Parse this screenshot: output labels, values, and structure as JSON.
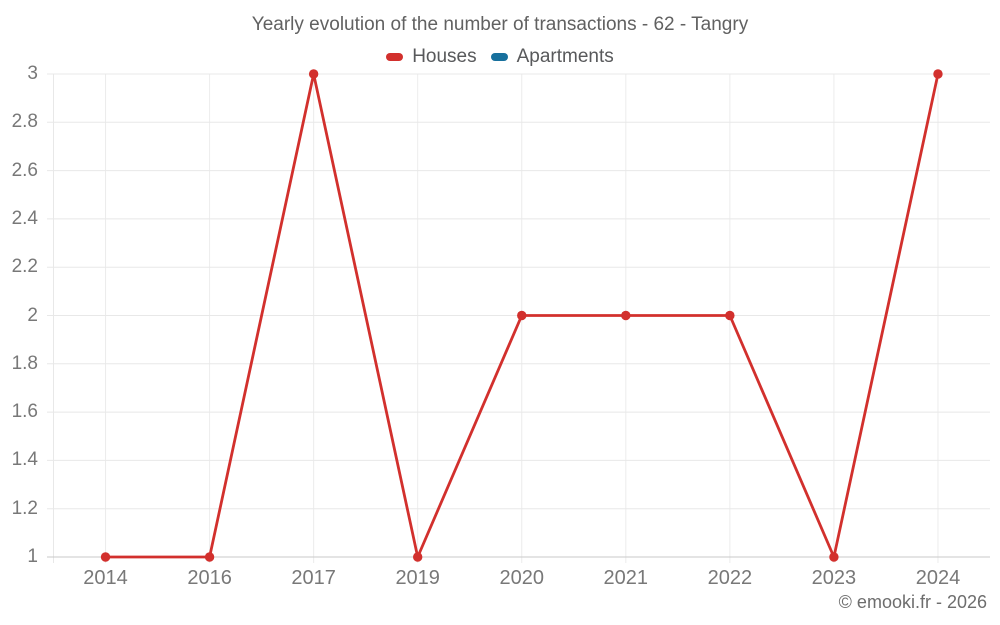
{
  "page": {
    "footer": "© emooki.fr - 2026"
  },
  "chart_data": {
    "type": "line",
    "title": "Yearly evolution of the number of transactions - 62 - Tangry",
    "categories": [
      "2014",
      "2016",
      "2017",
      "2019",
      "2020",
      "2021",
      "2022",
      "2023",
      "2024"
    ],
    "series": [
      {
        "name": "Houses",
        "color": "#d2302d",
        "values": [
          1,
          1,
          3,
          1,
          2,
          2,
          2,
          1,
          3
        ]
      },
      {
        "name": "Apartments",
        "color": "#17709d",
        "values": []
      }
    ],
    "ylim": [
      1,
      3
    ],
    "yticks": [
      "1",
      "1.2",
      "1.4",
      "1.6",
      "1.8",
      "2",
      "2.2",
      "2.4",
      "2.6",
      "2.8",
      "3"
    ],
    "xlabel": "",
    "ylabel": "",
    "grid": true,
    "legend_position": "top",
    "colors": {
      "grid": "#e8e8e8",
      "grid_vertical": "#ececec",
      "baseline": "#c9c9c9",
      "tick_text": "#787878",
      "title_text": "#616161"
    }
  }
}
